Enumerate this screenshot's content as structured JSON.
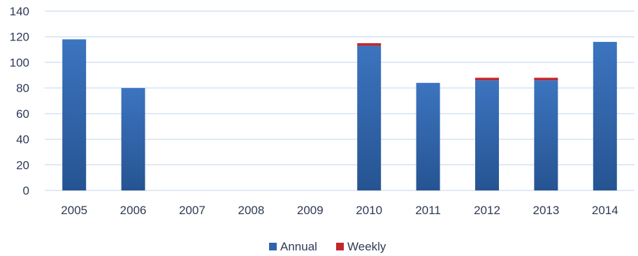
{
  "chart_data": {
    "type": "bar",
    "stacked": true,
    "categories": [
      "2005",
      "2006",
      "2007",
      "2008",
      "2009",
      "2010",
      "2011",
      "2012",
      "2013",
      "2014"
    ],
    "series": [
      {
        "name": "Annual",
        "values": [
          118,
          80,
          0,
          0,
          0,
          113,
          84,
          86,
          86,
          116
        ],
        "color": "#2f64ad"
      },
      {
        "name": "Weekly",
        "values": [
          0,
          0,
          0,
          0,
          0,
          2,
          0,
          2,
          2,
          0
        ],
        "color": "#c0282d"
      }
    ],
    "ylim": [
      0,
      140
    ],
    "yticks": [
      0,
      20,
      40,
      60,
      80,
      100,
      120,
      140
    ],
    "grid": true,
    "legend_position": "bottom",
    "colors": {
      "grid": "#d5e3f2",
      "axis_text": "#2d3a56",
      "bar_top": "#3c74bf",
      "bar_bottom": "#265492"
    }
  }
}
